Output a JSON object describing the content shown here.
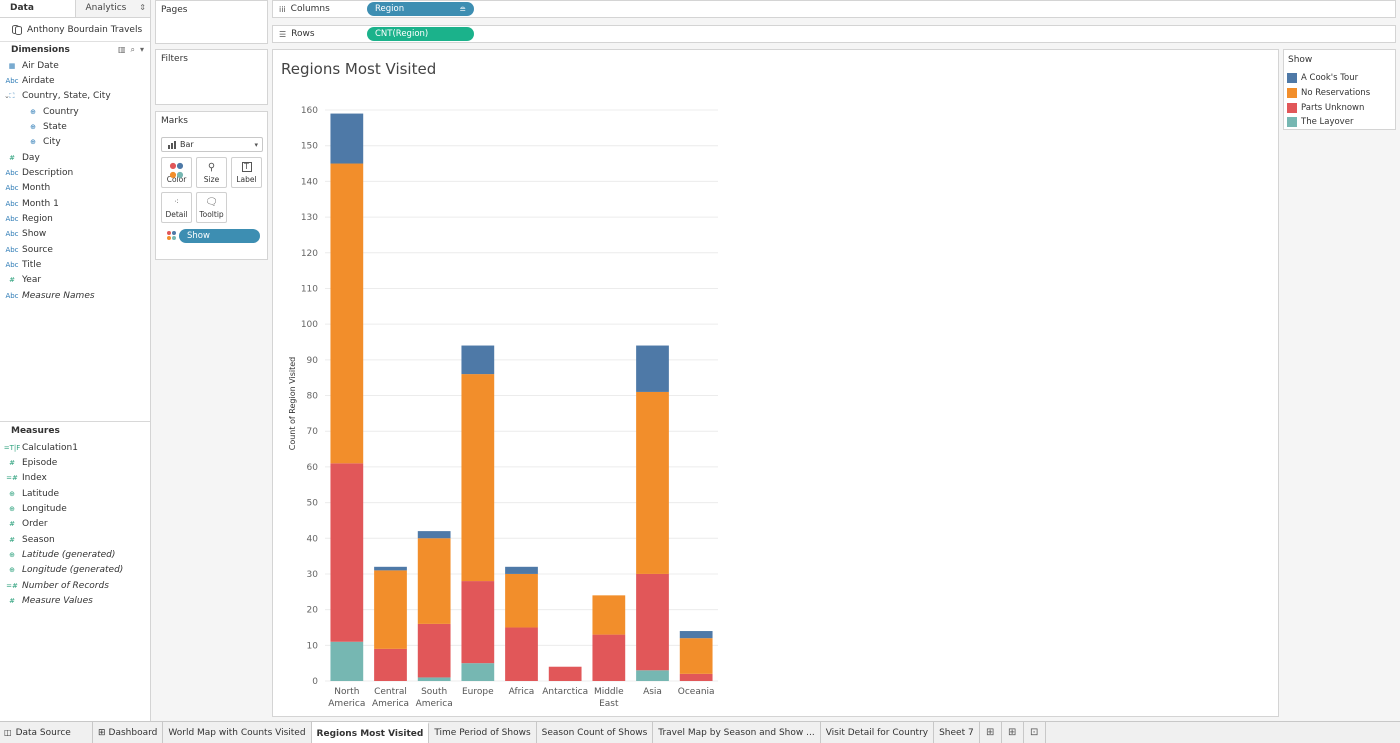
{
  "left_pane": {
    "tabs": [
      "Data",
      "Analytics"
    ],
    "datasource": "Anthony Bourdain Travels",
    "dimensions_heading": "Dimensions",
    "dimensions": [
      {
        "label": "Air Date",
        "icon": "calendar-icon",
        "level": 0
      },
      {
        "label": "Airdate",
        "icon": "abc-icon",
        "level": 0
      },
      {
        "label": "Country, State, City",
        "icon": "hierarchy-icon",
        "level": 0,
        "expanded": true
      },
      {
        "label": "Country",
        "icon": "globe-icon",
        "level": 1
      },
      {
        "label": "State",
        "icon": "globe-icon",
        "level": 1
      },
      {
        "label": "City",
        "icon": "globe-icon",
        "level": 1
      },
      {
        "label": "Day",
        "icon": "hash-icon",
        "level": 0
      },
      {
        "label": "Description",
        "icon": "abc-icon",
        "level": 0
      },
      {
        "label": "Month",
        "icon": "abc-icon",
        "level": 0
      },
      {
        "label": "Month 1",
        "icon": "abc-icon",
        "level": 0
      },
      {
        "label": "Region",
        "icon": "abc-icon",
        "level": 0
      },
      {
        "label": "Show",
        "icon": "abc-icon",
        "level": 0
      },
      {
        "label": "Source",
        "icon": "abc-icon",
        "level": 0
      },
      {
        "label": "Title",
        "icon": "abc-icon",
        "level": 0
      },
      {
        "label": "Year",
        "icon": "hash-icon",
        "level": 0
      },
      {
        "label": "Measure Names",
        "icon": "abc-icon",
        "level": 0,
        "italic": true
      }
    ],
    "measures_heading": "Measures",
    "measures": [
      {
        "label": "Calculation1",
        "icon": "calc-icon",
        "italic": false
      },
      {
        "label": "Episode",
        "icon": "hash-icon",
        "italic": false
      },
      {
        "label": "Index",
        "icon": "calc-hash-icon",
        "italic": false
      },
      {
        "label": "Latitude",
        "icon": "globe-icon",
        "italic": false
      },
      {
        "label": "Longitude",
        "icon": "globe-icon",
        "italic": false
      },
      {
        "label": "Order",
        "icon": "hash-icon",
        "italic": false
      },
      {
        "label": "Season",
        "icon": "hash-icon",
        "italic": false
      },
      {
        "label": "Latitude (generated)",
        "icon": "globe-icon",
        "italic": true
      },
      {
        "label": "Longitude (generated)",
        "icon": "globe-icon",
        "italic": true
      },
      {
        "label": "Number of Records",
        "icon": "calc-hash-icon",
        "italic": true
      },
      {
        "label": "Measure Values",
        "icon": "hash-icon",
        "italic": true
      }
    ]
  },
  "shelves": {
    "pages_title": "Pages",
    "filters_title": "Filters",
    "marks_title": "Marks",
    "mark_type": "Bar",
    "mark_buttons": [
      "Color",
      "Size",
      "Label",
      "Detail",
      "Tooltip"
    ],
    "color_pill": "Show",
    "columns_label": "Columns",
    "columns_pill": "Region",
    "rows_label": "Rows",
    "rows_pill": "CNT(Region)"
  },
  "viz": {
    "title": "Regions Most Visited"
  },
  "legend": {
    "title": "Show",
    "items": [
      {
        "label": "A Cook's Tour",
        "color": "#4e79a7"
      },
      {
        "label": "No Reservations",
        "color": "#f28e2b"
      },
      {
        "label": "Parts Unknown",
        "color": "#e15759"
      },
      {
        "label": "The Layover",
        "color": "#76b7b2"
      }
    ]
  },
  "tabs": {
    "data_source": "Data Source",
    "sheets": [
      "Dashboard",
      "World Map with Counts Visited",
      "Regions Most Visited",
      "Time Period of Shows",
      "Season Count of Shows",
      "Travel Map by Season and Show ...",
      "Visit Detail for Country",
      "Sheet 7"
    ],
    "active": "Regions Most Visited"
  },
  "chart_data": {
    "type": "bar",
    "stacked": true,
    "ylabel": "Count of Region Visited",
    "ylim": [
      0,
      160
    ],
    "yticks": [
      0,
      10,
      20,
      30,
      40,
      50,
      60,
      70,
      80,
      90,
      100,
      110,
      120,
      130,
      140,
      150,
      160
    ],
    "categories": [
      [
        "North",
        "America"
      ],
      [
        "Central",
        "America"
      ],
      [
        "South",
        "America"
      ],
      [
        "Europe"
      ],
      [
        "Africa"
      ],
      [
        "Antarctica"
      ],
      [
        "Middle",
        "East"
      ],
      [
        "Asia"
      ],
      [
        "Oceania"
      ]
    ],
    "series": [
      {
        "name": "The Layover",
        "color": "#76b7b2",
        "values": [
          11,
          0,
          1,
          5,
          0,
          0,
          0,
          3,
          0
        ]
      },
      {
        "name": "Parts Unknown",
        "color": "#e15759",
        "values": [
          50,
          9,
          15,
          23,
          15,
          4,
          13,
          27,
          2
        ]
      },
      {
        "name": "No Reservations",
        "color": "#f28e2b",
        "values": [
          84,
          22,
          24,
          58,
          15,
          0,
          11,
          51,
          10
        ]
      },
      {
        "name": "A Cook's Tour",
        "color": "#4e79a7",
        "values": [
          14,
          1,
          2,
          8,
          2,
          0,
          0,
          13,
          2
        ]
      }
    ]
  }
}
